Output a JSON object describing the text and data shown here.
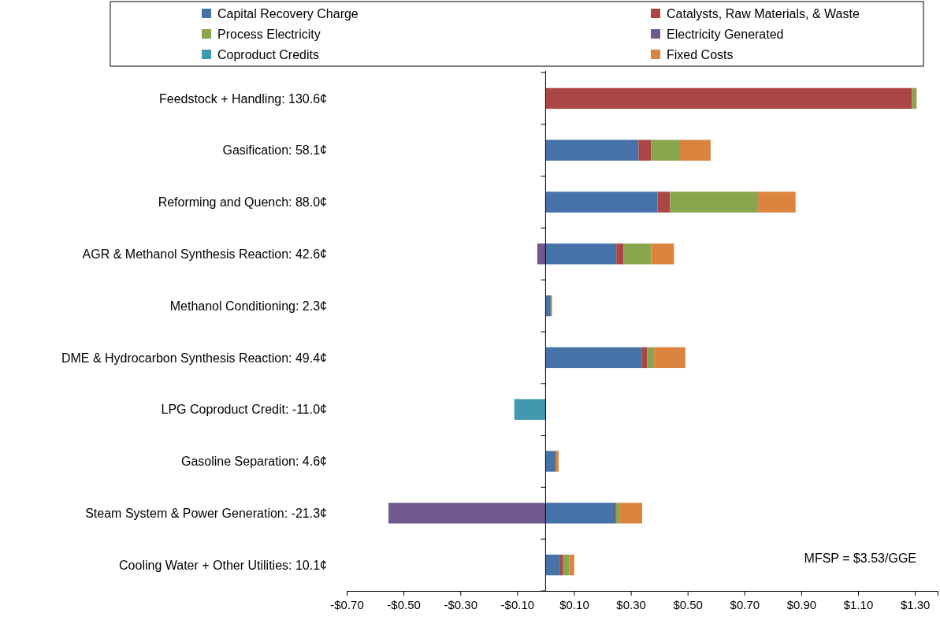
{
  "chart_data": {
    "type": "bar",
    "orientation": "horizontal",
    "stacked": true,
    "categories": [
      "Feedstock + Handling: 130.6¢",
      "Gasification: 58.1¢",
      "Reforming and Quench: 88.0¢",
      "AGR & Methanol Synthesis Reaction: 42.6¢",
      "Methanol Conditioning: 2.3¢",
      "DME & Hydrocarbon Synthesis Reaction: 49.4¢",
      "LPG Coproduct Credit: -11.0¢",
      "Gasoline Separation: 4.6¢",
      "Steam System & Power Generation: -21.3¢",
      "Cooling Water + Other Utilities: 10.1¢"
    ],
    "series": [
      {
        "name": "Capital Recovery Charge",
        "color": "#4572a7",
        "values": [
          null,
          0.327,
          0.394,
          0.249,
          0.018,
          0.338,
          null,
          0.035,
          0.243,
          0.051
        ]
      },
      {
        "name": "Catalysts, Raw Materials, & Waste",
        "color": "#aa4643",
        "values": [
          1.29,
          0.044,
          0.044,
          0.026,
          null,
          0.02,
          null,
          null,
          0.005,
          0.011
        ]
      },
      {
        "name": "Process Electricity",
        "color": "#89a54e",
        "values": [
          0.016,
          0.102,
          0.31,
          0.097,
          null,
          0.024,
          null,
          null,
          0.012,
          0.021
        ]
      },
      {
        "name": "Electricity Generated",
        "color": "#71588f",
        "values": [
          null,
          null,
          null,
          -0.029,
          null,
          null,
          null,
          null,
          -0.553,
          null
        ]
      },
      {
        "name": "Coproduct Credits",
        "color": "#4198af",
        "values": [
          null,
          null,
          null,
          null,
          null,
          null,
          -0.11,
          null,
          null,
          null
        ]
      },
      {
        "name": "Fixed Costs",
        "color": "#db843d",
        "values": [
          null,
          0.108,
          0.132,
          0.08,
          0.005,
          0.11,
          null,
          0.011,
          0.08,
          0.018
        ]
      }
    ],
    "xlim": [
      -0.7,
      1.38
    ],
    "xticks": [
      {
        "value": -0.7,
        "label": "-$0.70"
      },
      {
        "value": -0.5,
        "label": "-$0.50"
      },
      {
        "value": -0.3,
        "label": "-$0.30"
      },
      {
        "value": -0.1,
        "label": "-$0.10"
      },
      {
        "value": 0.1,
        "label": "$0.10"
      },
      {
        "value": 0.3,
        "label": "$0.30"
      },
      {
        "value": 0.5,
        "label": "$0.50"
      },
      {
        "value": 0.7,
        "label": "$0.70"
      },
      {
        "value": 0.9,
        "label": "$0.90"
      },
      {
        "value": 1.1,
        "label": "$1.10"
      },
      {
        "value": 1.3,
        "label": "$1.30"
      }
    ],
    "legend": "top",
    "grid": false,
    "annotations": [
      "MFSP = $3.53/GGE"
    ]
  }
}
